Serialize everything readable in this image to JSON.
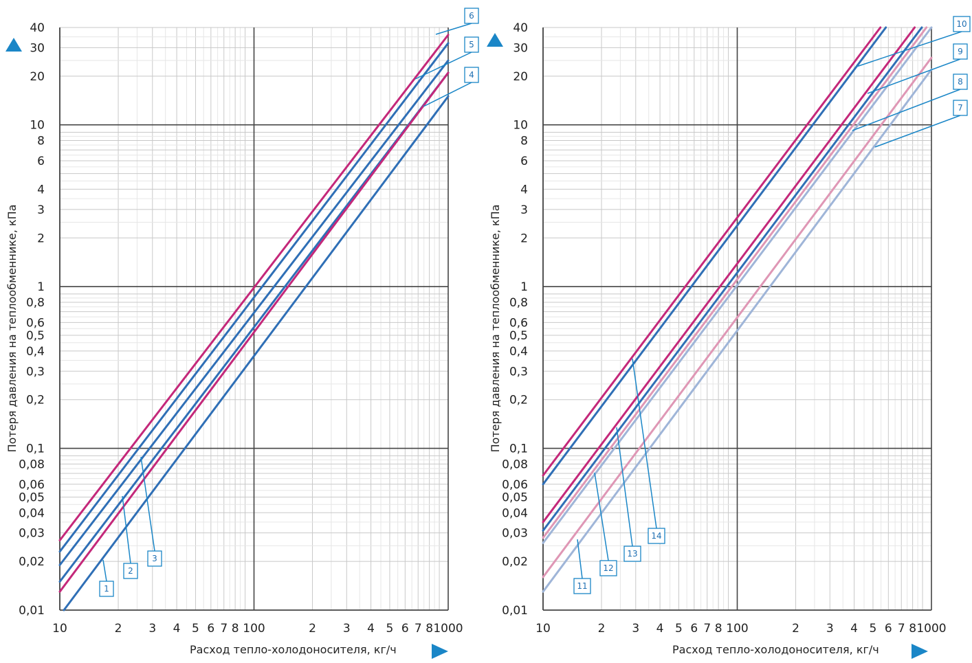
{
  "colors": {
    "blue": "#2f6fb6",
    "magenta": "#c4287a",
    "light_blue": "#9fb5d8",
    "light_pink": "#df97b5",
    "accent": "#1a86c7",
    "grid_major": "#444444",
    "grid_minor": "#c8c8c8"
  },
  "chart_data": [
    {
      "type": "line",
      "scale": "log-log",
      "xlabel": "Расход тепло-холодоносителя, кг/ч",
      "ylabel": "Потеря давления на теплообменнике, кПа",
      "xlim": [
        10,
        1000
      ],
      "ylim": [
        0.01,
        40
      ],
      "x_ticks": [
        "10",
        "2",
        "3",
        "4",
        "5",
        "6",
        "7",
        "8",
        "100",
        "2",
        "3",
        "4",
        "5",
        "6",
        "7",
        "8",
        "1000"
      ],
      "y_ticks": [
        "40",
        "30",
        "20",
        "10",
        "8",
        "6",
        "4",
        "3",
        "2",
        "1",
        "0,8",
        "0,6",
        "0,5",
        "0,4",
        "0,3",
        "0,2",
        "0,1",
        "0,08",
        "0,06",
        "0,05",
        "0,04",
        "0,03",
        "0,02",
        "0,01"
      ],
      "series": [
        {
          "name": "1",
          "color": "blue",
          "x": [
            10.5,
            1000
          ],
          "y": [
            0.01,
            15
          ]
        },
        {
          "name": "2",
          "color": "blue",
          "x": [
            10,
            1000
          ],
          "y": [
            0.015,
            21
          ]
        },
        {
          "name": "3",
          "color": "blue",
          "x": [
            10,
            1000
          ],
          "y": [
            0.019,
            25
          ]
        },
        {
          "name": "4",
          "color": "magenta",
          "x": [
            10,
            1000
          ],
          "y": [
            0.013,
            21
          ]
        },
        {
          "name": "5",
          "color": "blue",
          "x": [
            10,
            1000
          ],
          "y": [
            0.023,
            32
          ]
        },
        {
          "name": "6",
          "color": "magenta",
          "x": [
            10,
            1000
          ],
          "y": [
            0.027,
            36
          ]
        }
      ]
    },
    {
      "type": "line",
      "scale": "log-log",
      "xlabel": "Расход тепло-холодоносителя, кг/ч",
      "ylabel": "Потеря давления на теплообменнике, кПа",
      "xlim": [
        10,
        1000
      ],
      "ylim": [
        0.01,
        40
      ],
      "x_ticks": [
        "10",
        "2",
        "3",
        "4",
        "5",
        "6",
        "7",
        "8",
        "100",
        "2",
        "3",
        "4",
        "5",
        "6",
        "7",
        "8",
        "1000"
      ],
      "y_ticks": [
        "40",
        "30",
        "20",
        "10",
        "8",
        "6",
        "4",
        "3",
        "2",
        "1",
        "0,8",
        "0,6",
        "0,5",
        "0,4",
        "0,3",
        "0,2",
        "0,1",
        "0,08",
        "0,06",
        "0,05",
        "0,04",
        "0,03",
        "0,02",
        "0,01"
      ],
      "series": [
        {
          "name": "7",
          "color": "light_blue",
          "x": [
            10,
            1000
          ],
          "y": [
            0.013,
            22
          ]
        },
        {
          "name": "8",
          "color": "light_pink",
          "x": [
            10,
            1000
          ],
          "y": [
            0.016,
            26
          ]
        },
        {
          "name": "9",
          "color": "light_blue",
          "x": [
            10,
            1000
          ],
          "y": [
            0.026,
            40
          ]
        },
        {
          "name": "10",
          "color": "light_pink",
          "x": [
            10,
            1000
          ],
          "y": [
            0.028,
            44
          ]
        },
        {
          "name": "11",
          "color": "blue",
          "x": [
            10,
            1000
          ],
          "y": [
            0.031,
            48
          ]
        },
        {
          "name": "12",
          "color": "magenta",
          "x": [
            10,
            1000
          ],
          "y": [
            0.035,
            55
          ]
        },
        {
          "name": "13",
          "color": "blue",
          "x": [
            10,
            1000
          ],
          "y": [
            0.06,
            95
          ]
        },
        {
          "name": "14",
          "color": "magenta",
          "x": [
            10,
            1000
          ],
          "y": [
            0.068,
            105
          ]
        }
      ]
    }
  ]
}
